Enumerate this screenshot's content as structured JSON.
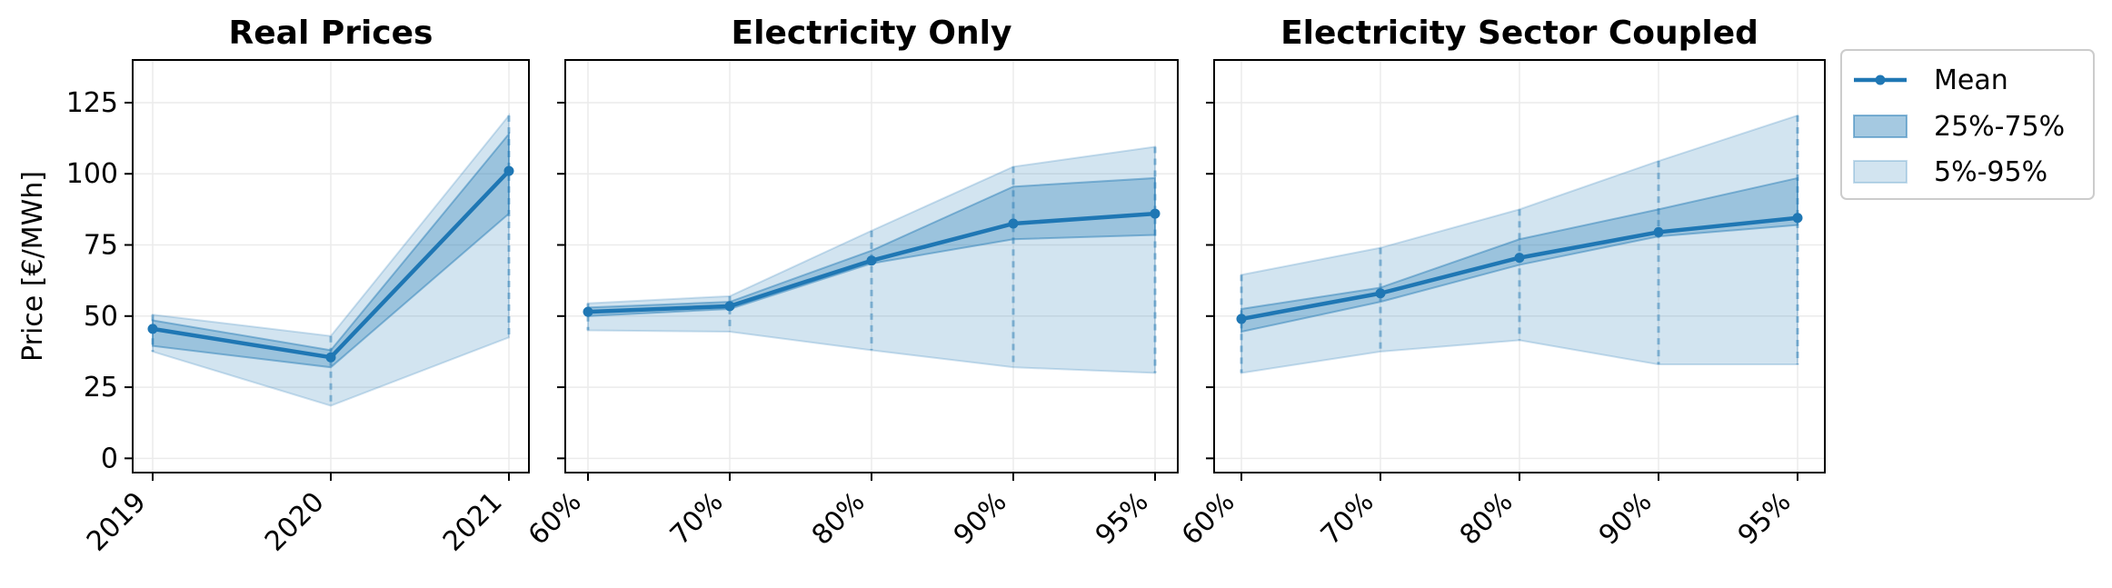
{
  "chart_data": {
    "type": "area",
    "ylabel": "Price [€/MWh]",
    "ylim": [
      -5,
      140
    ],
    "yticks": [
      0,
      25,
      50,
      75,
      100,
      125
    ],
    "grid": true,
    "legend_position": "outside-top-right",
    "colors": {
      "line": "#1f77b4",
      "band_inner": "#1f77b4",
      "band_outer": "#1f77b4"
    },
    "legend": [
      {
        "label": "Mean",
        "kind": "line"
      },
      {
        "label": "25%-75%",
        "kind": "band_inner"
      },
      {
        "label": "5%-95%",
        "kind": "band_outer"
      }
    ],
    "panels": [
      {
        "title": "Real Prices",
        "categories": [
          "2019",
          "2020",
          "2021"
        ],
        "mean": [
          45.5,
          35.5,
          101
        ],
        "p25": [
          39.5,
          32,
          86
        ],
        "p75": [
          48.5,
          38,
          114
        ],
        "p5": [
          37.5,
          18.5,
          42.5
        ],
        "p95": [
          50.5,
          43,
          120.5
        ]
      },
      {
        "title": "Electricity Only",
        "categories": [
          "60%",
          "70%",
          "80%",
          "90%",
          "95%"
        ],
        "mean": [
          51.5,
          53.5,
          69.5,
          82.5,
          86
        ],
        "p25": [
          50,
          52.5,
          68.5,
          77,
          78.5
        ],
        "p75": [
          53,
          55,
          73,
          95.5,
          98.5
        ],
        "p5": [
          45,
          44.5,
          38,
          32,
          30
        ],
        "p95": [
          54.5,
          57,
          80,
          102.5,
          109.5
        ]
      },
      {
        "title": "Electricity Sector Coupled",
        "categories": [
          "60%",
          "70%",
          "80%",
          "90%",
          "95%"
        ],
        "mean": [
          49,
          58,
          70.5,
          79.5,
          84.5
        ],
        "p25": [
          44.5,
          55,
          68,
          78,
          82
        ],
        "p75": [
          52.5,
          60,
          77,
          87.5,
          98.5
        ],
        "p5": [
          30,
          37.5,
          41.5,
          33,
          33
        ],
        "p95": [
          64.5,
          74,
          87.5,
          104.5,
          120.5
        ]
      }
    ]
  }
}
